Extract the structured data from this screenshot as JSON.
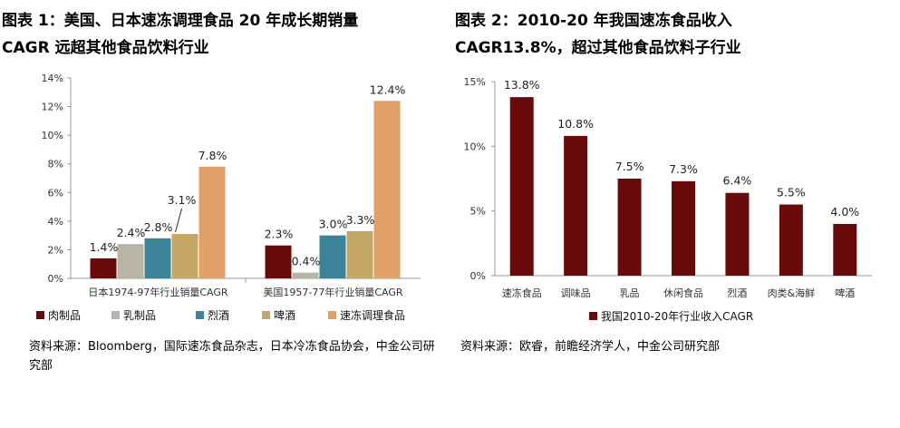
{
  "left": {
    "title_line1": "图表 1：美国、日本速冻调理食品 20 年成长期销量",
    "title_line2": "CAGR 远超其他食品饮料行业",
    "source": "资料来源：Bloomberg，国际速冻食品杂志，日本冷冻食品协会，中金公司研究部"
  },
  "right": {
    "title_line1": "图表 2：2010-20 年我国速冻食品收入",
    "title_line2": "CAGR13.8%，超过其他食品饮料子行业",
    "source": "资料来源：欧睿，前瞻经济学人，中金公司研究部"
  },
  "chart_data": [
    {
      "type": "bar",
      "categories": [
        "日本1974-97年行业销量CAGR",
        "美国1957-77年行业销量CAGR"
      ],
      "series": [
        {
          "name": "肉制品",
          "values": [
            1.4,
            2.3
          ],
          "labels": [
            "1.4%",
            "2.3%"
          ],
          "color": "#6b0a0a"
        },
        {
          "name": "乳制品",
          "values": [
            2.4,
            0.4
          ],
          "labels": [
            "2.4%",
            "0.4%"
          ],
          "color": "#b8b5a6"
        },
        {
          "name": "烈酒",
          "values": [
            2.8,
            3.0
          ],
          "labels": [
            "2.8%",
            "3.0%"
          ],
          "color": "#3a8399"
        },
        {
          "name": "啤酒",
          "values": [
            3.1,
            3.3
          ],
          "labels": [
            "3.1%",
            "3.3%"
          ],
          "color": "#c4a764"
        },
        {
          "name": "速冻调理食品",
          "values": [
            7.8,
            12.4
          ],
          "labels": [
            "7.8%",
            "12.4%"
          ],
          "color": "#e0a068"
        }
      ],
      "yticks": [
        "0%",
        "2%",
        "4%",
        "6%",
        "8%",
        "10%",
        "12%",
        "14%"
      ],
      "ylim": [
        0,
        14
      ],
      "legend_position": "bottom",
      "grid": false
    },
    {
      "type": "bar",
      "categories": [
        "速冻食品",
        "调味品",
        "乳品",
        "休闲食品",
        "烈酒",
        "肉类&海鲜",
        "啤酒"
      ],
      "series": [
        {
          "name": "我国2010-20年行业收入CAGR",
          "values": [
            13.8,
            10.8,
            7.5,
            7.3,
            6.4,
            5.5,
            4.0
          ],
          "labels": [
            "13.8%",
            "10.8%",
            "7.5%",
            "7.3%",
            "6.4%",
            "5.5%",
            "4.0%"
          ],
          "color": "#6b0a0a"
        }
      ],
      "yticks": [
        "0%",
        "5%",
        "10%",
        "15%"
      ],
      "ylim": [
        0,
        15
      ],
      "legend_position": "bottom",
      "grid": false
    }
  ]
}
